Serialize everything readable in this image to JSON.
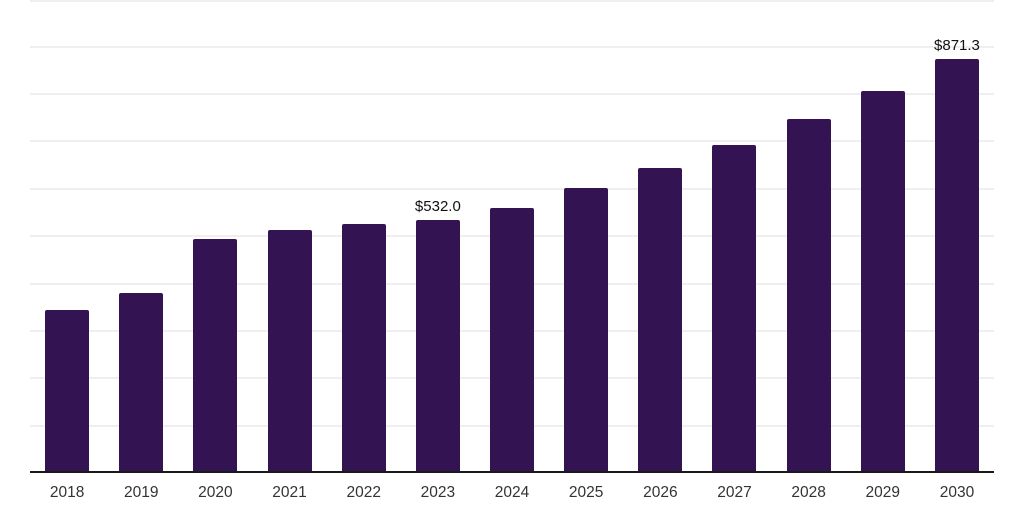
{
  "chart_data": {
    "type": "bar",
    "title": "",
    "xlabel": "",
    "ylabel": "",
    "categories": [
      "2018",
      "2019",
      "2020",
      "2021",
      "2022",
      "2023",
      "2024",
      "2025",
      "2026",
      "2027",
      "2028",
      "2029",
      "2030"
    ],
    "values": [
      343,
      377,
      492,
      511,
      524,
      532.0,
      557,
      600,
      642,
      691,
      745,
      804,
      871.3
    ],
    "data_labels": {
      "2023": "$532.0",
      "2030": "$871.3"
    },
    "ylim": [
      0,
      1000
    ],
    "grid": "horizontal gridlines every 100 units, light gray, no y-axis tick labels",
    "legend_position": "none",
    "colors": {
      "bar": "#341352",
      "gridline": "#efefef",
      "axis": "#1a1a1a",
      "axis_label": "#333333",
      "data_label": "#111111",
      "background": "#ffffff"
    }
  }
}
